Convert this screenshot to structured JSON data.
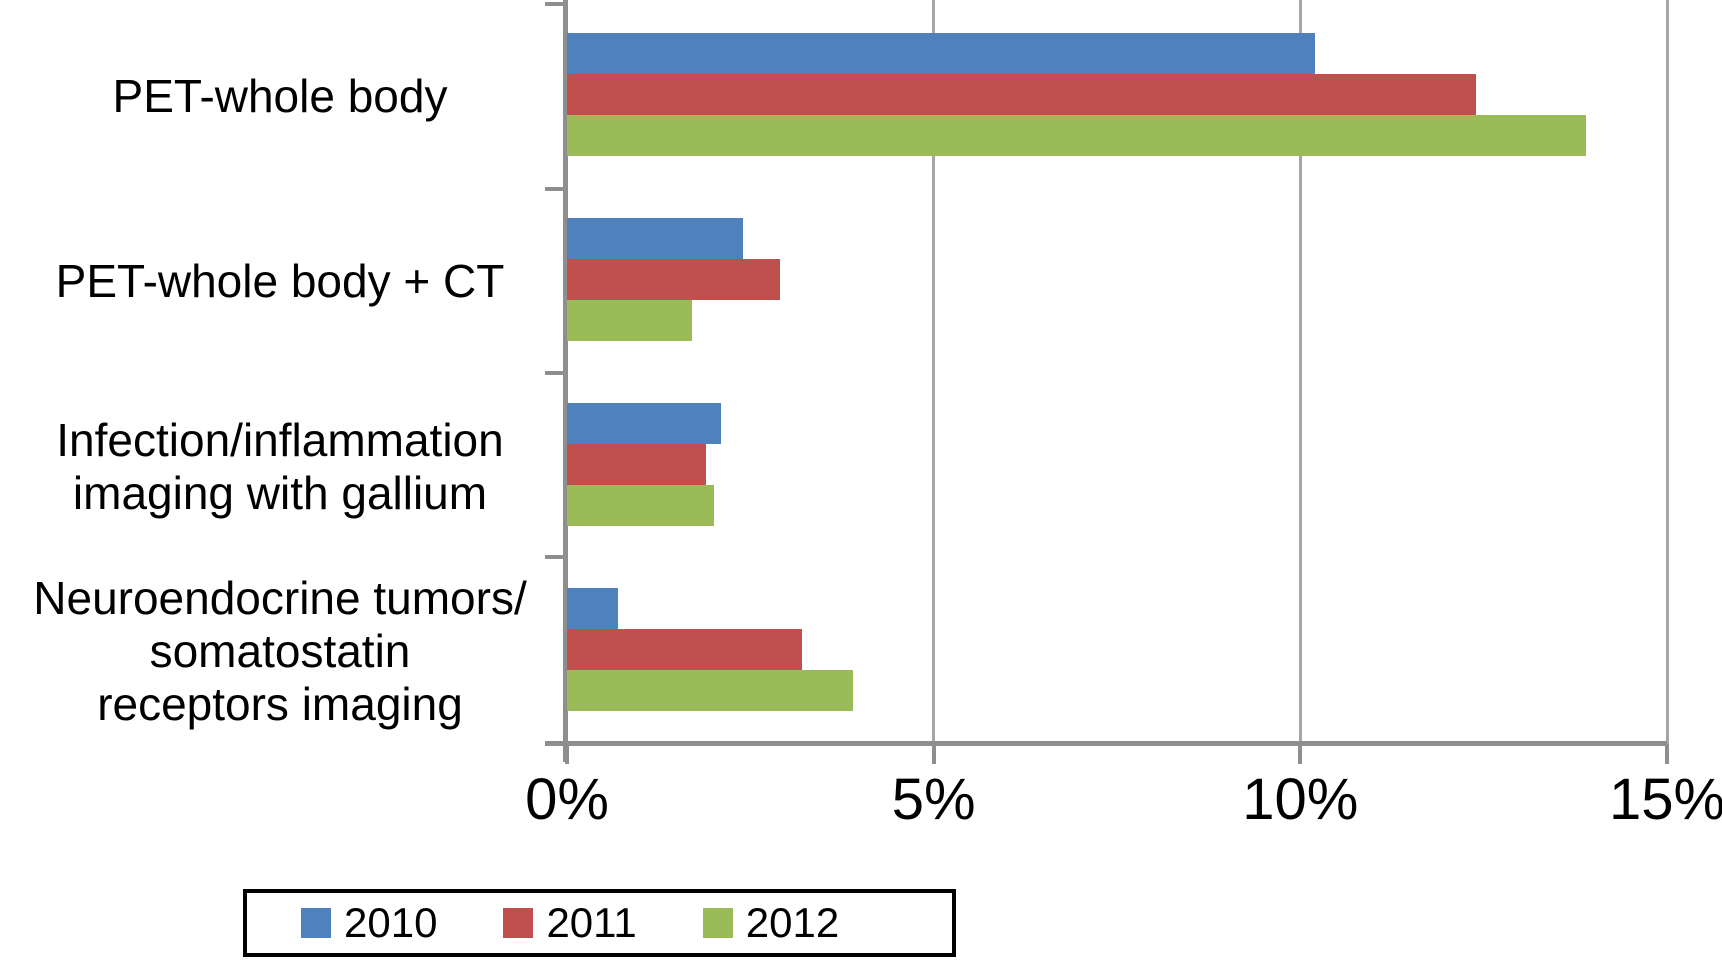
{
  "chart_data": {
    "type": "bar",
    "orientation": "horizontal",
    "title": "",
    "xlabel": "",
    "ylabel": "",
    "x_axis": {
      "min": 0,
      "max": 15,
      "tick_values": [
        0,
        5,
        10,
        15
      ],
      "tick_labels": [
        "0%",
        "5%",
        "10%",
        "15%"
      ],
      "grid": true
    },
    "categories": [
      "PET-whole body",
      "PET-whole body + CT",
      "Infection/inflammation imaging with gallium",
      "Neuroendocrine tumors/ somatostatin receptors imaging"
    ],
    "category_label_lines": [
      [
        "PET-whole body"
      ],
      [
        "PET-whole body + CT"
      ],
      [
        "Infection/inflammation",
        "imaging with gallium"
      ],
      [
        "Neuroendocrine tumors/",
        "somatostatin",
        "receptors imaging"
      ]
    ],
    "series": [
      {
        "name": "2010",
        "color": "#4F81BD",
        "values": [
          10.2,
          2.4,
          2.1,
          0.7
        ]
      },
      {
        "name": "2011",
        "color": "#C0504D",
        "values": [
          12.4,
          2.9,
          1.9,
          3.2
        ]
      },
      {
        "name": "2012",
        "color": "#9BBB59",
        "values": [
          13.9,
          1.7,
          2.0,
          3.9
        ]
      }
    ],
    "legend_position": "bottom-left",
    "axis_color": "#8e8e8e",
    "gridline_color": "#a6a6a6",
    "background_color": "#ffffff"
  }
}
